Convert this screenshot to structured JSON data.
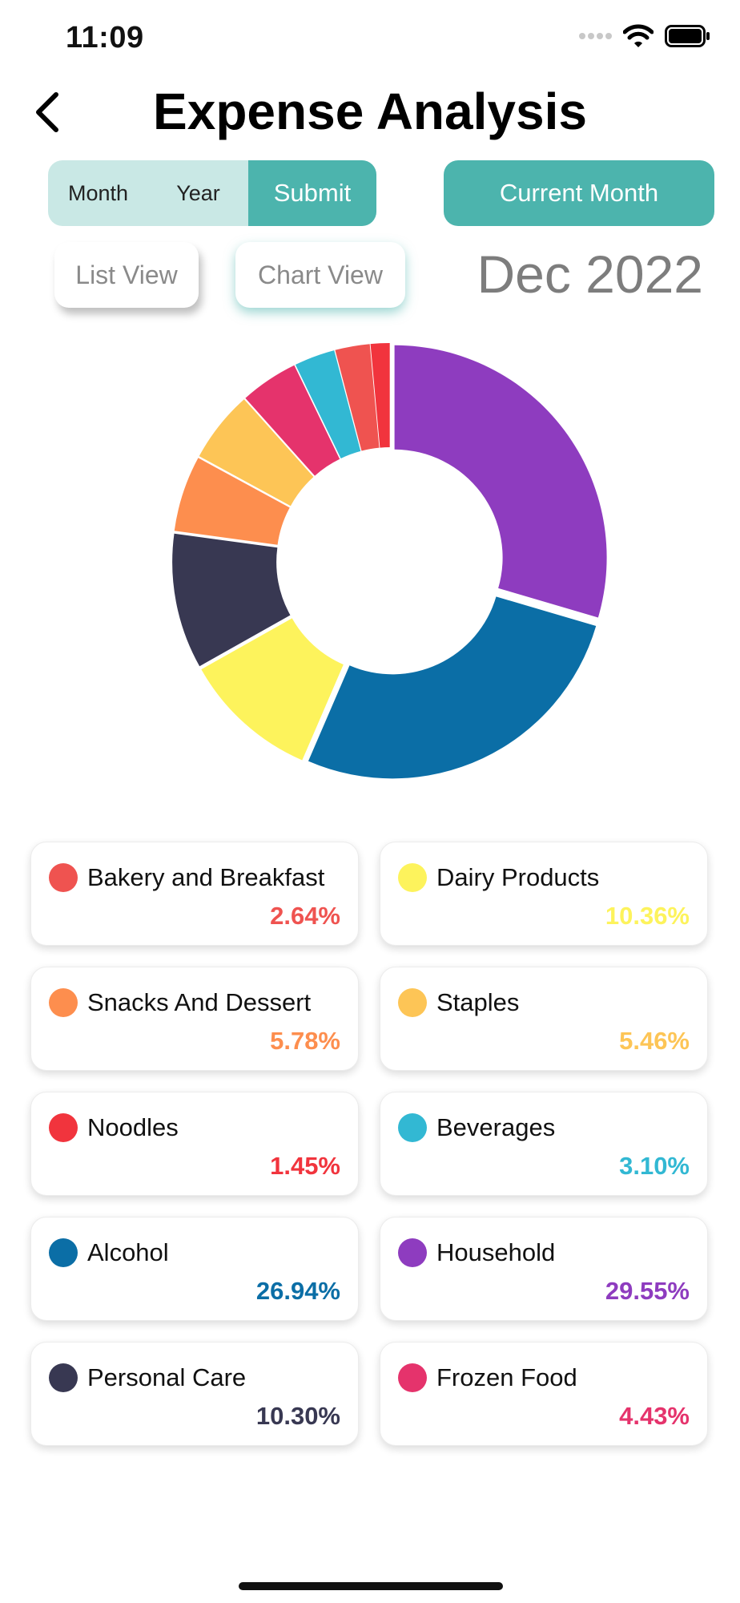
{
  "status_bar": {
    "time": "11:09"
  },
  "header": {
    "title": "Expense Analysis"
  },
  "filters": {
    "month_label": "Month",
    "year_label": "Year",
    "submit_label": "Submit",
    "current_month_label": "Current Month"
  },
  "views": {
    "list_label": "List View",
    "chart_label": "Chart View"
  },
  "period": "Dec 2022",
  "chart_data": {
    "type": "pie",
    "categories": [
      "Household",
      "Alcohol",
      "Dairy Products",
      "Personal Care",
      "Snacks And Dessert",
      "Staples",
      "Frozen Food",
      "Beverages",
      "Bakery and Breakfast",
      "Noodles"
    ],
    "values": [
      29.55,
      26.94,
      10.36,
      10.3,
      5.78,
      5.46,
      4.43,
      3.1,
      2.64,
      1.45
    ],
    "colors": [
      "#8e3cbf",
      "#0b6ea6",
      "#fdf35c",
      "#383852",
      "#fd8e4e",
      "#fdc556",
      "#e5336c",
      "#32b8d3",
      "#ef5350",
      "#f1343d"
    ]
  },
  "legend": [
    {
      "name": "Bakery and Breakfast",
      "percent": "2.64%",
      "color": "#ef5350"
    },
    {
      "name": "Dairy Products",
      "percent": "10.36%",
      "color": "#fdf35c"
    },
    {
      "name": "Snacks And Dessert",
      "percent": "5.78%",
      "color": "#fd8e4e"
    },
    {
      "name": "Staples",
      "percent": "5.46%",
      "color": "#fdc556"
    },
    {
      "name": "Noodles",
      "percent": "1.45%",
      "color": "#f1343d"
    },
    {
      "name": "Beverages",
      "percent": "3.10%",
      "color": "#32b8d3"
    },
    {
      "name": "Alcohol",
      "percent": "26.94%",
      "color": "#0b6ea6"
    },
    {
      "name": "Household",
      "percent": "29.55%",
      "color": "#8e3cbf"
    },
    {
      "name": "Personal Care",
      "percent": "10.30%",
      "color": "#383852"
    },
    {
      "name": "Frozen Food",
      "percent": "4.43%",
      "color": "#e5336c"
    }
  ]
}
